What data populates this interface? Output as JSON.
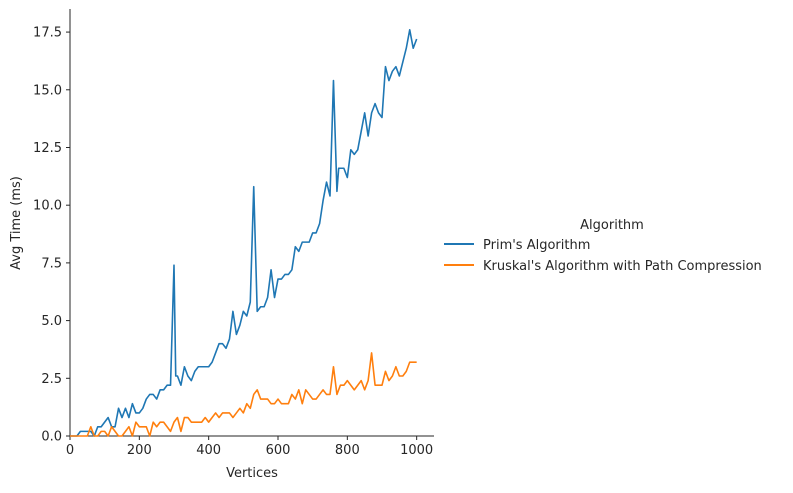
{
  "chart_data": {
    "type": "line",
    "title": "",
    "xlabel": "Vertices",
    "ylabel": "Avg Time (ms)",
    "xlim": [
      0,
      1050
    ],
    "ylim": [
      0,
      18.5
    ],
    "xticks": [
      0,
      200,
      400,
      600,
      800,
      1000
    ],
    "xtick_labels": [
      "0",
      "200",
      "400",
      "600",
      "800",
      "1000"
    ],
    "yticks": [
      0,
      2.5,
      5,
      7.5,
      10,
      12.5,
      15,
      17.5
    ],
    "ytick_labels": [
      "0.0",
      "2.5",
      "5.0",
      "7.5",
      "10.0",
      "12.5",
      "15.0",
      "17.5"
    ],
    "grid": false,
    "legend": {
      "title": "Algorithm",
      "placement": "right, outside plot"
    },
    "series": [
      {
        "name": "Prim's Algorithm",
        "color": "#1f77b4",
        "points": [
          [
            0,
            0
          ],
          [
            10,
            0
          ],
          [
            20,
            0
          ],
          [
            30,
            0.2
          ],
          [
            40,
            0.2
          ],
          [
            50,
            0.2
          ],
          [
            60,
            0.2
          ],
          [
            70,
            0
          ],
          [
            80,
            0.4
          ],
          [
            90,
            0.4
          ],
          [
            100,
            0.6
          ],
          [
            110,
            0.8
          ],
          [
            120,
            0.4
          ],
          [
            130,
            0.4
          ],
          [
            140,
            1.2
          ],
          [
            150,
            0.8
          ],
          [
            160,
            1.2
          ],
          [
            170,
            0.8
          ],
          [
            180,
            1.4
          ],
          [
            190,
            1.0
          ],
          [
            200,
            1.0
          ],
          [
            210,
            1.2
          ],
          [
            220,
            1.6
          ],
          [
            230,
            1.8
          ],
          [
            240,
            1.8
          ],
          [
            250,
            1.6
          ],
          [
            260,
            2.0
          ],
          [
            270,
            2.0
          ],
          [
            280,
            2.2
          ],
          [
            290,
            2.2
          ],
          [
            300,
            7.4
          ],
          [
            305,
            2.6
          ],
          [
            310,
            2.6
          ],
          [
            320,
            2.2
          ],
          [
            330,
            3.0
          ],
          [
            340,
            2.6
          ],
          [
            350,
            2.4
          ],
          [
            360,
            2.8
          ],
          [
            370,
            3.0
          ],
          [
            380,
            3.0
          ],
          [
            390,
            3.0
          ],
          [
            400,
            3.0
          ],
          [
            410,
            3.2
          ],
          [
            420,
            3.6
          ],
          [
            430,
            4.0
          ],
          [
            440,
            4.0
          ],
          [
            450,
            3.8
          ],
          [
            460,
            4.2
          ],
          [
            470,
            5.4
          ],
          [
            480,
            4.4
          ],
          [
            490,
            4.8
          ],
          [
            500,
            5.4
          ],
          [
            510,
            5.2
          ],
          [
            520,
            5.8
          ],
          [
            530,
            10.8
          ],
          [
            540,
            5.4
          ],
          [
            550,
            5.6
          ],
          [
            560,
            5.6
          ],
          [
            570,
            6.0
          ],
          [
            580,
            7.2
          ],
          [
            590,
            6.0
          ],
          [
            600,
            6.8
          ],
          [
            610,
            6.8
          ],
          [
            620,
            7.0
          ],
          [
            630,
            7.0
          ],
          [
            640,
            7.2
          ],
          [
            650,
            8.2
          ],
          [
            660,
            8.0
          ],
          [
            670,
            8.4
          ],
          [
            680,
            8.4
          ],
          [
            690,
            8.4
          ],
          [
            700,
            8.8
          ],
          [
            710,
            8.8
          ],
          [
            720,
            9.2
          ],
          [
            730,
            10.2
          ],
          [
            740,
            11.0
          ],
          [
            750,
            10.4
          ],
          [
            760,
            15.4
          ],
          [
            770,
            10.6
          ],
          [
            775,
            11.6
          ],
          [
            790,
            11.6
          ],
          [
            800,
            11.2
          ],
          [
            810,
            12.4
          ],
          [
            820,
            12.2
          ],
          [
            830,
            12.4
          ],
          [
            840,
            13.2
          ],
          [
            850,
            14.0
          ],
          [
            860,
            13.0
          ],
          [
            870,
            14.0
          ],
          [
            880,
            14.4
          ],
          [
            890,
            14.0
          ],
          [
            900,
            13.8
          ],
          [
            910,
            16.0
          ],
          [
            920,
            15.4
          ],
          [
            930,
            15.8
          ],
          [
            940,
            16.0
          ],
          [
            950,
            15.6
          ],
          [
            960,
            16.2
          ],
          [
            970,
            16.8
          ],
          [
            980,
            17.6
          ],
          [
            990,
            16.8
          ],
          [
            1000,
            17.2
          ]
        ]
      },
      {
        "name": "Kruskal's Algorithm with Path Compression",
        "color": "#ff7f0e",
        "points": [
          [
            0,
            0
          ],
          [
            10,
            0
          ],
          [
            20,
            0
          ],
          [
            30,
            0
          ],
          [
            40,
            0
          ],
          [
            50,
            0
          ],
          [
            60,
            0.4
          ],
          [
            70,
            0
          ],
          [
            80,
            0
          ],
          [
            90,
            0.2
          ],
          [
            100,
            0.2
          ],
          [
            110,
            0
          ],
          [
            120,
            0.4
          ],
          [
            130,
            0.2
          ],
          [
            140,
            0
          ],
          [
            150,
            0
          ],
          [
            160,
            0.2
          ],
          [
            170,
            0.4
          ],
          [
            180,
            0
          ],
          [
            190,
            0.6
          ],
          [
            200,
            0.4
          ],
          [
            210,
            0.4
          ],
          [
            220,
            0.4
          ],
          [
            230,
            0
          ],
          [
            240,
            0.6
          ],
          [
            250,
            0.4
          ],
          [
            260,
            0.6
          ],
          [
            270,
            0.6
          ],
          [
            280,
            0.4
          ],
          [
            290,
            0.2
          ],
          [
            300,
            0.6
          ],
          [
            310,
            0.8
          ],
          [
            320,
            0.2
          ],
          [
            330,
            0.8
          ],
          [
            340,
            0.8
          ],
          [
            350,
            0.6
          ],
          [
            360,
            0.6
          ],
          [
            370,
            0.6
          ],
          [
            380,
            0.6
          ],
          [
            390,
            0.8
          ],
          [
            400,
            0.6
          ],
          [
            410,
            0.8
          ],
          [
            420,
            1.0
          ],
          [
            430,
            0.8
          ],
          [
            440,
            1.0
          ],
          [
            450,
            1.0
          ],
          [
            460,
            1.0
          ],
          [
            470,
            0.8
          ],
          [
            480,
            1.0
          ],
          [
            490,
            1.2
          ],
          [
            500,
            1.0
          ],
          [
            510,
            1.4
          ],
          [
            520,
            1.2
          ],
          [
            530,
            1.8
          ],
          [
            540,
            2.0
          ],
          [
            550,
            1.6
          ],
          [
            560,
            1.6
          ],
          [
            570,
            1.6
          ],
          [
            580,
            1.4
          ],
          [
            590,
            1.4
          ],
          [
            600,
            1.6
          ],
          [
            610,
            1.4
          ],
          [
            620,
            1.4
          ],
          [
            630,
            1.4
          ],
          [
            640,
            1.8
          ],
          [
            650,
            1.6
          ],
          [
            660,
            2.0
          ],
          [
            670,
            1.4
          ],
          [
            680,
            2.0
          ],
          [
            690,
            1.8
          ],
          [
            700,
            1.6
          ],
          [
            710,
            1.6
          ],
          [
            720,
            1.8
          ],
          [
            730,
            2.0
          ],
          [
            740,
            1.8
          ],
          [
            750,
            1.8
          ],
          [
            760,
            3.0
          ],
          [
            770,
            1.8
          ],
          [
            780,
            2.2
          ],
          [
            790,
            2.2
          ],
          [
            800,
            2.4
          ],
          [
            810,
            2.2
          ],
          [
            820,
            2.0
          ],
          [
            830,
            2.2
          ],
          [
            840,
            2.4
          ],
          [
            850,
            2.0
          ],
          [
            860,
            2.4
          ],
          [
            870,
            3.6
          ],
          [
            880,
            2.2
          ],
          [
            890,
            2.2
          ],
          [
            900,
            2.2
          ],
          [
            910,
            2.8
          ],
          [
            920,
            2.4
          ],
          [
            930,
            2.6
          ],
          [
            940,
            3.0
          ],
          [
            950,
            2.6
          ],
          [
            960,
            2.6
          ],
          [
            970,
            2.8
          ],
          [
            980,
            3.2
          ],
          [
            990,
            3.2
          ],
          [
            1000,
            3.2
          ]
        ]
      }
    ]
  }
}
